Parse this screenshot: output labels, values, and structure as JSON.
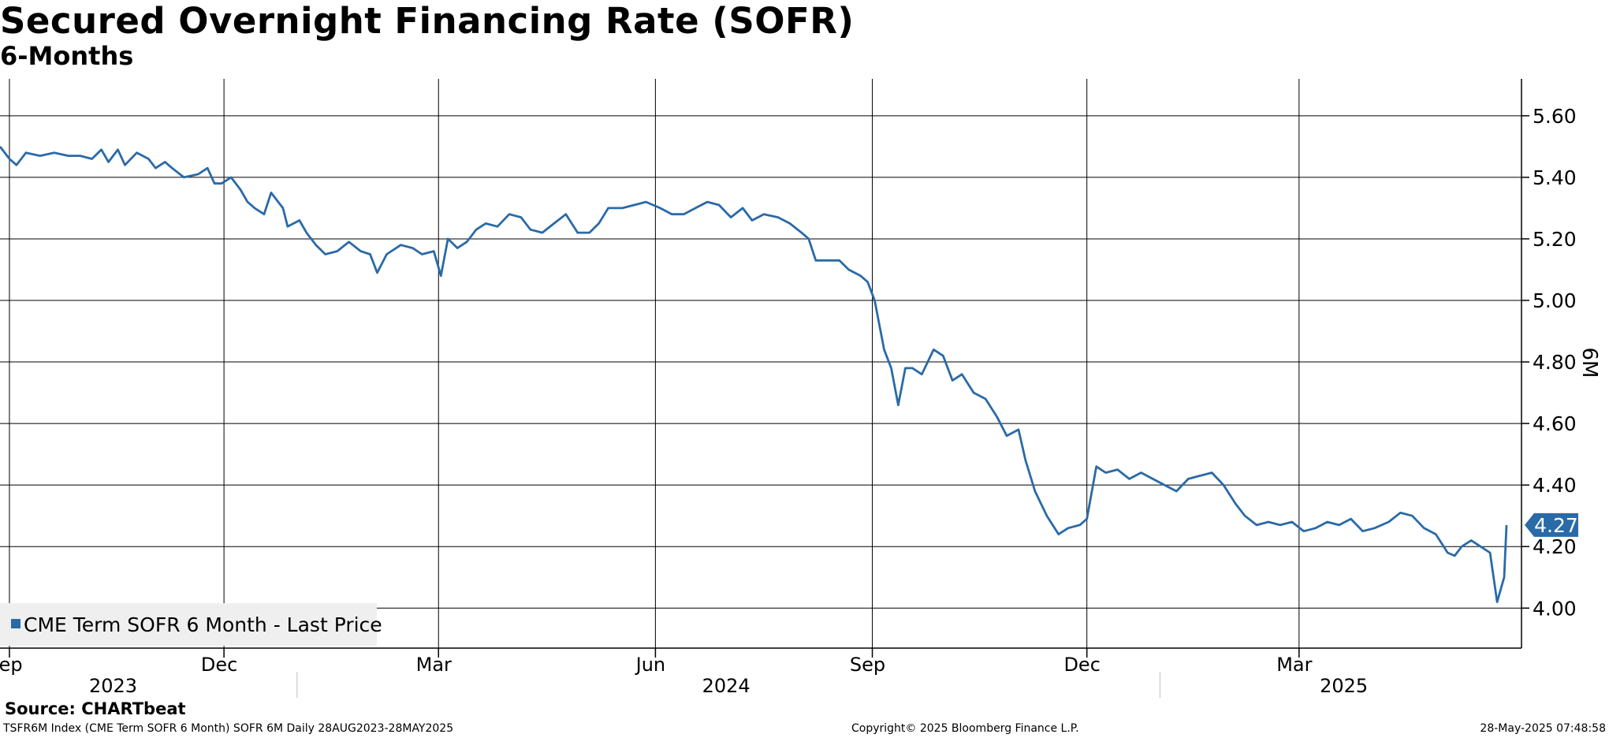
{
  "header": {
    "title": "Secured Overnight Financing Rate (SOFR)",
    "subtitle": "6-Months"
  },
  "footer": {
    "source": "Source: CHARTbeat",
    "left": "TSFR6M Index (CME Term SOFR 6 Month) SOFR 6M  Daily 28AUG2023-28MAY2025",
    "middle": "Copyright© 2025 Bloomberg Finance L.P.",
    "right": "28-May-2025 07:48:58"
  },
  "colors": {
    "series": "#2a6aa7",
    "grid": "#000000",
    "legend_bg": "#efefef",
    "last_label_bg": "#2a6aa7"
  },
  "chart_data": {
    "type": "line",
    "ylabel": "6M",
    "ylim": [
      3.87,
      5.72
    ],
    "y_ticks": [
      4.0,
      4.2,
      4.4,
      4.6,
      4.8,
      5.0,
      5.2,
      5.4,
      5.6
    ],
    "y_tick_labels": [
      "4.00",
      "4.20",
      "4.40",
      "4.60",
      "4.80",
      "5.00",
      "5.20",
      "5.40",
      "5.60"
    ],
    "xlim": [
      "2023-08-28",
      "2025-05-31"
    ],
    "month_ticks": [
      {
        "date": "2023-09-01",
        "label": "Sep"
      },
      {
        "date": "2023-12-01",
        "label": "Dec"
      },
      {
        "date": "2024-03-01",
        "label": "Mar"
      },
      {
        "date": "2024-06-01",
        "label": "Jun"
      },
      {
        "date": "2024-09-01",
        "label": "Sep"
      },
      {
        "date": "2024-12-01",
        "label": "Dec"
      },
      {
        "date": "2025-03-01",
        "label": "Mar"
      }
    ],
    "year_labels": [
      {
        "date": "2023-10-15",
        "label": "2023"
      },
      {
        "date": "2024-07-01",
        "label": "2024"
      },
      {
        "date": "2025-03-20",
        "label": "2025"
      }
    ],
    "year_dividers": [
      "2024-01-01",
      "2025-01-01"
    ],
    "grid": true,
    "legend": {
      "position": "bottom-left"
    },
    "last_value": {
      "value": 4.27,
      "label": "4.27"
    },
    "series": [
      {
        "name": "CME Term SOFR 6 Month - Last Price",
        "points": [
          [
            "2023-08-28",
            5.5
          ],
          [
            "2023-09-01",
            5.46
          ],
          [
            "2023-09-04",
            5.44
          ],
          [
            "2023-09-08",
            5.48
          ],
          [
            "2023-09-14",
            5.47
          ],
          [
            "2023-09-20",
            5.48
          ],
          [
            "2023-09-26",
            5.47
          ],
          [
            "2023-10-01",
            5.47
          ],
          [
            "2023-10-06",
            5.46
          ],
          [
            "2023-10-10",
            5.49
          ],
          [
            "2023-10-13",
            5.45
          ],
          [
            "2023-10-17",
            5.49
          ],
          [
            "2023-10-20",
            5.44
          ],
          [
            "2023-10-25",
            5.48
          ],
          [
            "2023-10-30",
            5.46
          ],
          [
            "2023-11-02",
            5.43
          ],
          [
            "2023-11-06",
            5.45
          ],
          [
            "2023-11-09",
            5.43
          ],
          [
            "2023-11-14",
            5.4
          ],
          [
            "2023-11-20",
            5.41
          ],
          [
            "2023-11-24",
            5.43
          ],
          [
            "2023-11-27",
            5.38
          ],
          [
            "2023-11-30",
            5.38
          ],
          [
            "2023-12-04",
            5.4
          ],
          [
            "2023-12-08",
            5.36
          ],
          [
            "2023-12-11",
            5.32
          ],
          [
            "2023-12-14",
            5.3
          ],
          [
            "2023-12-18",
            5.28
          ],
          [
            "2023-12-21",
            5.35
          ],
          [
            "2023-12-26",
            5.3
          ],
          [
            "2023-12-28",
            5.24
          ],
          [
            "2024-01-02",
            5.26
          ],
          [
            "2024-01-05",
            5.22
          ],
          [
            "2024-01-09",
            5.18
          ],
          [
            "2024-01-13",
            5.15
          ],
          [
            "2024-01-18",
            5.16
          ],
          [
            "2024-01-23",
            5.19
          ],
          [
            "2024-01-28",
            5.16
          ],
          [
            "2024-02-01",
            5.15
          ],
          [
            "2024-02-04",
            5.09
          ],
          [
            "2024-02-08",
            5.15
          ],
          [
            "2024-02-14",
            5.18
          ],
          [
            "2024-02-19",
            5.17
          ],
          [
            "2024-02-23",
            5.15
          ],
          [
            "2024-02-28",
            5.16
          ],
          [
            "2024-03-02",
            5.08
          ],
          [
            "2024-03-05",
            5.2
          ],
          [
            "2024-03-09",
            5.17
          ],
          [
            "2024-03-13",
            5.19
          ],
          [
            "2024-03-17",
            5.23
          ],
          [
            "2024-03-21",
            5.25
          ],
          [
            "2024-03-26",
            5.24
          ],
          [
            "2024-03-31",
            5.28
          ],
          [
            "2024-04-05",
            5.27
          ],
          [
            "2024-04-09",
            5.23
          ],
          [
            "2024-04-14",
            5.22
          ],
          [
            "2024-04-19",
            5.25
          ],
          [
            "2024-04-24",
            5.28
          ],
          [
            "2024-04-29",
            5.22
          ],
          [
            "2024-05-04",
            5.22
          ],
          [
            "2024-05-08",
            5.25
          ],
          [
            "2024-05-12",
            5.3
          ],
          [
            "2024-05-18",
            5.3
          ],
          [
            "2024-05-23",
            5.31
          ],
          [
            "2024-05-28",
            5.32
          ],
          [
            "2024-06-03",
            5.3
          ],
          [
            "2024-06-08",
            5.28
          ],
          [
            "2024-06-13",
            5.28
          ],
          [
            "2024-06-18",
            5.3
          ],
          [
            "2024-06-23",
            5.32
          ],
          [
            "2024-06-28",
            5.31
          ],
          [
            "2024-07-03",
            5.27
          ],
          [
            "2024-07-08",
            5.3
          ],
          [
            "2024-07-12",
            5.26
          ],
          [
            "2024-07-17",
            5.28
          ],
          [
            "2024-07-23",
            5.27
          ],
          [
            "2024-07-28",
            5.25
          ],
          [
            "2024-08-02",
            5.22
          ],
          [
            "2024-08-05",
            5.2
          ],
          [
            "2024-08-08",
            5.13
          ],
          [
            "2024-08-13",
            5.13
          ],
          [
            "2024-08-18",
            5.13
          ],
          [
            "2024-08-22",
            5.1
          ],
          [
            "2024-08-27",
            5.08
          ],
          [
            "2024-08-30",
            5.06
          ],
          [
            "2024-09-02",
            5.0
          ],
          [
            "2024-09-06",
            4.84
          ],
          [
            "2024-09-09",
            4.78
          ],
          [
            "2024-09-12",
            4.66
          ],
          [
            "2024-09-15",
            4.78
          ],
          [
            "2024-09-18",
            4.78
          ],
          [
            "2024-09-22",
            4.76
          ],
          [
            "2024-09-27",
            4.84
          ],
          [
            "2024-10-01",
            4.82
          ],
          [
            "2024-10-05",
            4.74
          ],
          [
            "2024-10-09",
            4.76
          ],
          [
            "2024-10-14",
            4.7
          ],
          [
            "2024-10-19",
            4.68
          ],
          [
            "2024-10-24",
            4.62
          ],
          [
            "2024-10-28",
            4.56
          ],
          [
            "2024-11-02",
            4.58
          ],
          [
            "2024-11-05",
            4.48
          ],
          [
            "2024-11-09",
            4.38
          ],
          [
            "2024-11-14",
            4.3
          ],
          [
            "2024-11-19",
            4.24
          ],
          [
            "2024-11-23",
            4.26
          ],
          [
            "2024-11-28",
            4.27
          ],
          [
            "2024-12-01",
            4.29
          ],
          [
            "2024-12-05",
            4.46
          ],
          [
            "2024-12-09",
            4.44
          ],
          [
            "2024-12-14",
            4.45
          ],
          [
            "2024-12-19",
            4.42
          ],
          [
            "2024-12-24",
            4.44
          ],
          [
            "2024-12-29",
            4.42
          ],
          [
            "2025-01-03",
            4.4
          ],
          [
            "2025-01-08",
            4.38
          ],
          [
            "2025-01-13",
            4.42
          ],
          [
            "2025-01-18",
            4.43
          ],
          [
            "2025-01-23",
            4.44
          ],
          [
            "2025-01-28",
            4.4
          ],
          [
            "2025-02-02",
            4.34
          ],
          [
            "2025-02-06",
            4.3
          ],
          [
            "2025-02-11",
            4.27
          ],
          [
            "2025-02-16",
            4.28
          ],
          [
            "2025-02-21",
            4.27
          ],
          [
            "2025-02-26",
            4.28
          ],
          [
            "2025-03-03",
            4.25
          ],
          [
            "2025-03-08",
            4.26
          ],
          [
            "2025-03-13",
            4.28
          ],
          [
            "2025-03-18",
            4.27
          ],
          [
            "2025-03-23",
            4.29
          ],
          [
            "2025-03-28",
            4.25
          ],
          [
            "2025-04-02",
            4.26
          ],
          [
            "2025-04-08",
            4.28
          ],
          [
            "2025-04-13",
            4.31
          ],
          [
            "2025-04-18",
            4.3
          ],
          [
            "2025-04-23",
            4.26
          ],
          [
            "2025-04-28",
            4.24
          ],
          [
            "2025-05-03",
            4.18
          ],
          [
            "2025-05-06",
            4.17
          ],
          [
            "2025-05-09",
            4.2
          ],
          [
            "2025-05-13",
            4.22
          ],
          [
            "2025-05-17",
            4.2
          ],
          [
            "2025-05-21",
            4.18
          ],
          [
            "2025-05-24",
            4.02
          ],
          [
            "2025-05-27",
            4.1
          ],
          [
            "2025-05-28",
            4.27
          ]
        ]
      }
    ]
  }
}
